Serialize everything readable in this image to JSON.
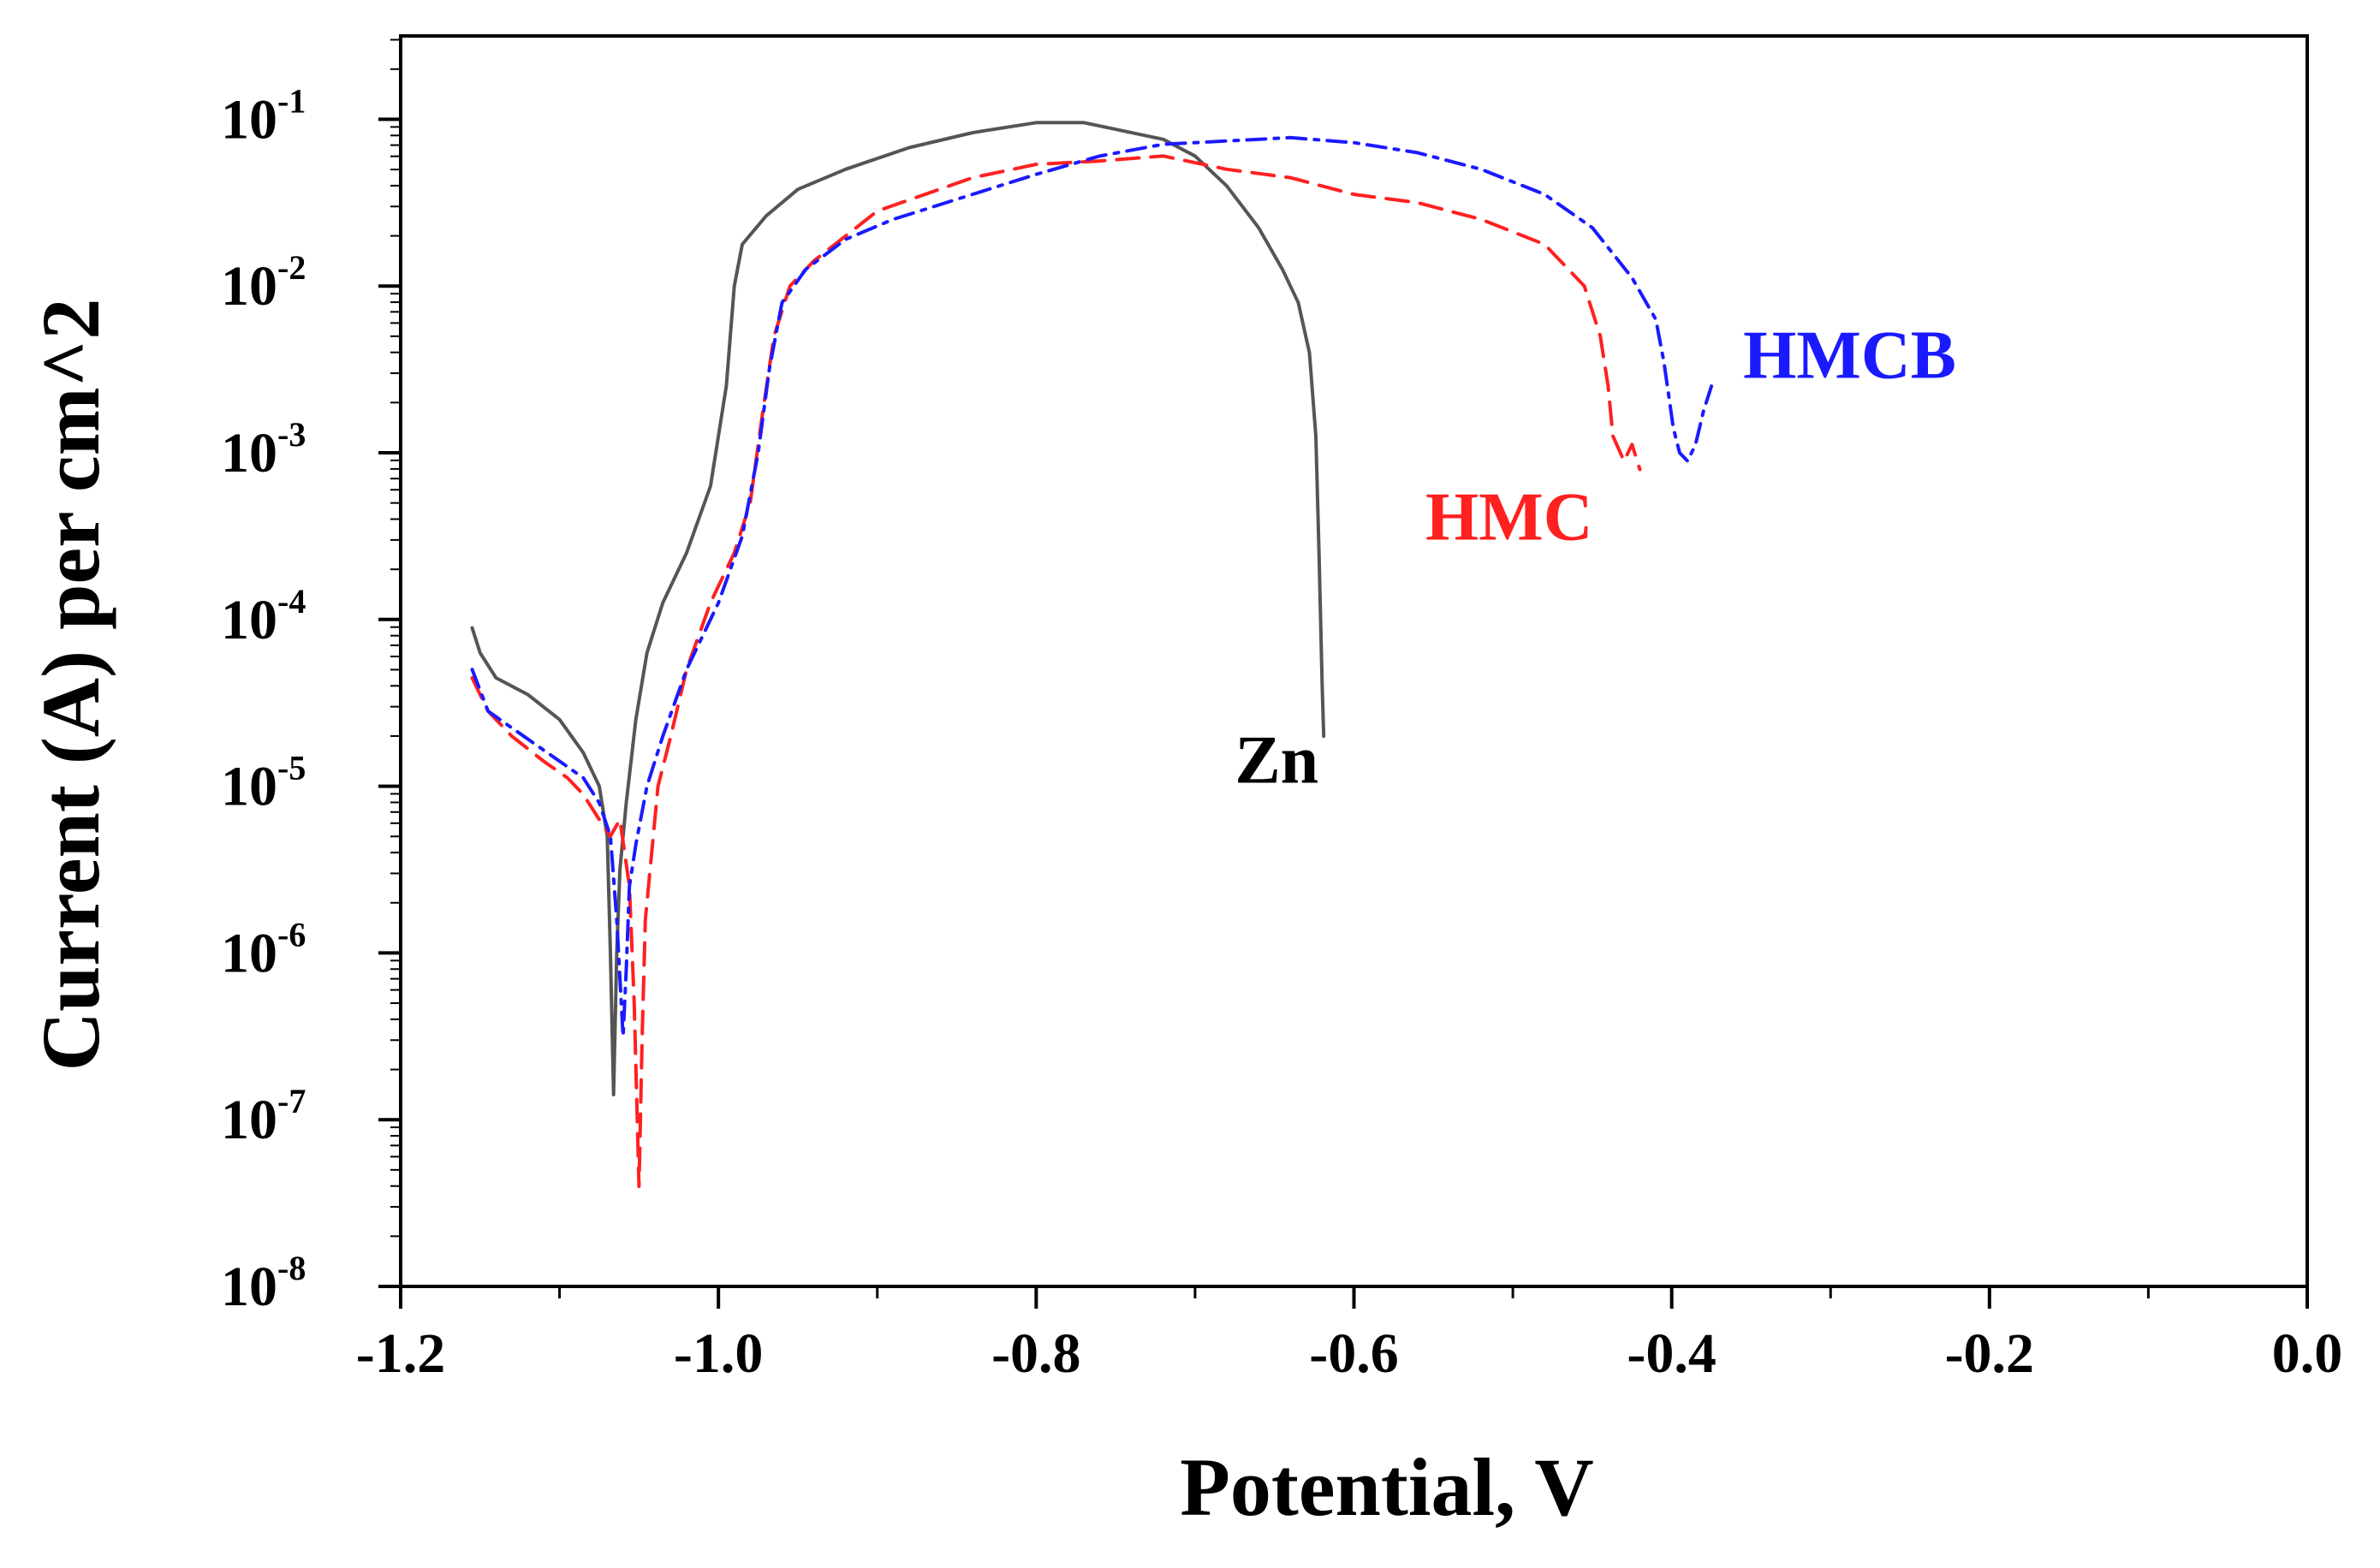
{
  "chart_data": {
    "type": "line",
    "title": "",
    "xlabel": "Potential, V",
    "ylabel": "Current (A) per cm^2",
    "xlim": [
      -1.2,
      0.0
    ],
    "ylim_log10": [
      -8,
      -0.5
    ],
    "yscale": "log",
    "grid": false,
    "x_ticks": [
      -1.2,
      -1.0,
      -0.8,
      -0.6,
      -0.4,
      -0.2,
      0.0
    ],
    "x_tick_labels": [
      "-1.2",
      "-1.0",
      "-0.8",
      "-0.6",
      "-0.4",
      "-0.2",
      "0.0"
    ],
    "y_ticks": [
      {
        "base": "10",
        "exp": "-1",
        "log": -1
      },
      {
        "base": "10",
        "exp": "-2",
        "log": -2
      },
      {
        "base": "10",
        "exp": "-3",
        "log": -3
      },
      {
        "base": "10",
        "exp": "-4",
        "log": -4
      },
      {
        "base": "10",
        "exp": "-5",
        "log": -5
      },
      {
        "base": "10",
        "exp": "-6",
        "log": -6
      },
      {
        "base": "10",
        "exp": "-7",
        "log": -7
      },
      {
        "base": "10",
        "exp": "-8",
        "log": -8
      }
    ],
    "series": [
      {
        "name": "Zn",
        "color": "#555555",
        "dash": "solid",
        "points": [
          [
            -1.155,
            -4.05
          ],
          [
            -1.15,
            -4.2
          ],
          [
            -1.14,
            -4.35
          ],
          [
            -1.12,
            -4.45
          ],
          [
            -1.1,
            -4.6
          ],
          [
            -1.085,
            -4.8
          ],
          [
            -1.075,
            -5.0
          ],
          [
            -1.07,
            -5.3
          ],
          [
            -1.068,
            -6.0
          ],
          [
            -1.066,
            -6.85
          ],
          [
            -1.064,
            -6.0
          ],
          [
            -1.062,
            -5.5
          ],
          [
            -1.058,
            -5.1
          ],
          [
            -1.052,
            -4.6
          ],
          [
            -1.045,
            -4.2
          ],
          [
            -1.035,
            -3.9
          ],
          [
            -1.02,
            -3.6
          ],
          [
            -1.005,
            -3.2
          ],
          [
            -0.995,
            -2.6
          ],
          [
            -0.99,
            -2.0
          ],
          [
            -0.985,
            -1.75
          ],
          [
            -0.97,
            -1.58
          ],
          [
            -0.95,
            -1.42
          ],
          [
            -0.92,
            -1.3
          ],
          [
            -0.88,
            -1.17
          ],
          [
            -0.84,
            -1.08
          ],
          [
            -0.8,
            -1.02
          ],
          [
            -0.77,
            -1.02
          ],
          [
            -0.75,
            -1.06
          ],
          [
            -0.72,
            -1.12
          ],
          [
            -0.7,
            -1.22
          ],
          [
            -0.68,
            -1.4
          ],
          [
            -0.66,
            -1.65
          ],
          [
            -0.645,
            -1.9
          ],
          [
            -0.635,
            -2.1
          ],
          [
            -0.628,
            -2.4
          ],
          [
            -0.624,
            -2.9
          ],
          [
            -0.622,
            -3.6
          ],
          [
            -0.62,
            -4.4
          ],
          [
            -0.619,
            -4.7
          ]
        ]
      },
      {
        "name": "HMC",
        "color": "#ff2020",
        "dash": "dashed",
        "points": [
          [
            -1.155,
            -4.35
          ],
          [
            -1.145,
            -4.55
          ],
          [
            -1.13,
            -4.7
          ],
          [
            -1.11,
            -4.85
          ],
          [
            -1.095,
            -4.95
          ],
          [
            -1.085,
            -5.05
          ],
          [
            -1.075,
            -5.2
          ],
          [
            -1.068,
            -5.3
          ],
          [
            -1.062,
            -5.2
          ],
          [
            -1.056,
            -5.6
          ],
          [
            -1.053,
            -6.3
          ],
          [
            -1.05,
            -7.4
          ],
          [
            -1.048,
            -6.5
          ],
          [
            -1.046,
            -5.8
          ],
          [
            -1.042,
            -5.4
          ],
          [
            -1.038,
            -5.0
          ],
          [
            -1.03,
            -4.7
          ],
          [
            -1.02,
            -4.3
          ],
          [
            -1.005,
            -3.9
          ],
          [
            -0.99,
            -3.6
          ],
          [
            -0.98,
            -3.3
          ],
          [
            -0.972,
            -2.75
          ],
          [
            -0.965,
            -2.3
          ],
          [
            -0.955,
            -2.0
          ],
          [
            -0.94,
            -1.85
          ],
          [
            -0.92,
            -1.7
          ],
          [
            -0.9,
            -1.55
          ],
          [
            -0.87,
            -1.45
          ],
          [
            -0.84,
            -1.35
          ],
          [
            -0.8,
            -1.27
          ],
          [
            -0.76,
            -1.25
          ],
          [
            -0.72,
            -1.22
          ],
          [
            -0.68,
            -1.3
          ],
          [
            -0.64,
            -1.35
          ],
          [
            -0.6,
            -1.45
          ],
          [
            -0.56,
            -1.5
          ],
          [
            -0.52,
            -1.6
          ],
          [
            -0.48,
            -1.75
          ],
          [
            -0.455,
            -2.0
          ],
          [
            -0.445,
            -2.3
          ],
          [
            -0.44,
            -2.6
          ],
          [
            -0.437,
            -2.9
          ],
          [
            -0.43,
            -3.05
          ],
          [
            -0.425,
            -2.95
          ],
          [
            -0.42,
            -3.1
          ]
        ]
      },
      {
        "name": "HMCB",
        "color": "#1a1aff",
        "dash": "dashdot",
        "points": [
          [
            -1.155,
            -4.3
          ],
          [
            -1.145,
            -4.55
          ],
          [
            -1.13,
            -4.65
          ],
          [
            -1.115,
            -4.75
          ],
          [
            -1.1,
            -4.85
          ],
          [
            -1.085,
            -4.95
          ],
          [
            -1.075,
            -5.1
          ],
          [
            -1.068,
            -5.3
          ],
          [
            -1.064,
            -5.8
          ],
          [
            -1.06,
            -6.5
          ],
          [
            -1.058,
            -6.1
          ],
          [
            -1.056,
            -5.6
          ],
          [
            -1.052,
            -5.35
          ],
          [
            -1.045,
            -5.0
          ],
          [
            -1.035,
            -4.7
          ],
          [
            -1.02,
            -4.3
          ],
          [
            -1.0,
            -3.9
          ],
          [
            -0.985,
            -3.5
          ],
          [
            -0.975,
            -3.0
          ],
          [
            -0.968,
            -2.5
          ],
          [
            -0.96,
            -2.1
          ],
          [
            -0.945,
            -1.9
          ],
          [
            -0.92,
            -1.72
          ],
          [
            -0.89,
            -1.6
          ],
          [
            -0.85,
            -1.48
          ],
          [
            -0.8,
            -1.33
          ],
          [
            -0.76,
            -1.22
          ],
          [
            -0.72,
            -1.15
          ],
          [
            -0.68,
            -1.13
          ],
          [
            -0.64,
            -1.11
          ],
          [
            -0.6,
            -1.14
          ],
          [
            -0.56,
            -1.2
          ],
          [
            -0.52,
            -1.3
          ],
          [
            -0.48,
            -1.45
          ],
          [
            -0.45,
            -1.65
          ],
          [
            -0.425,
            -1.95
          ],
          [
            -0.41,
            -2.2
          ],
          [
            -0.405,
            -2.45
          ],
          [
            -0.402,
            -2.65
          ],
          [
            -0.399,
            -2.85
          ],
          [
            -0.395,
            -3.0
          ],
          [
            -0.39,
            -3.05
          ],
          [
            -0.385,
            -2.95
          ],
          [
            -0.38,
            -2.75
          ],
          [
            -0.375,
            -2.6
          ]
        ]
      }
    ],
    "annotations": [
      {
        "text": "Zn",
        "color": "#000000"
      },
      {
        "text": "HMC",
        "color": "#ff2020"
      },
      {
        "text": "HMCB",
        "color": "#1a1aff"
      }
    ]
  }
}
